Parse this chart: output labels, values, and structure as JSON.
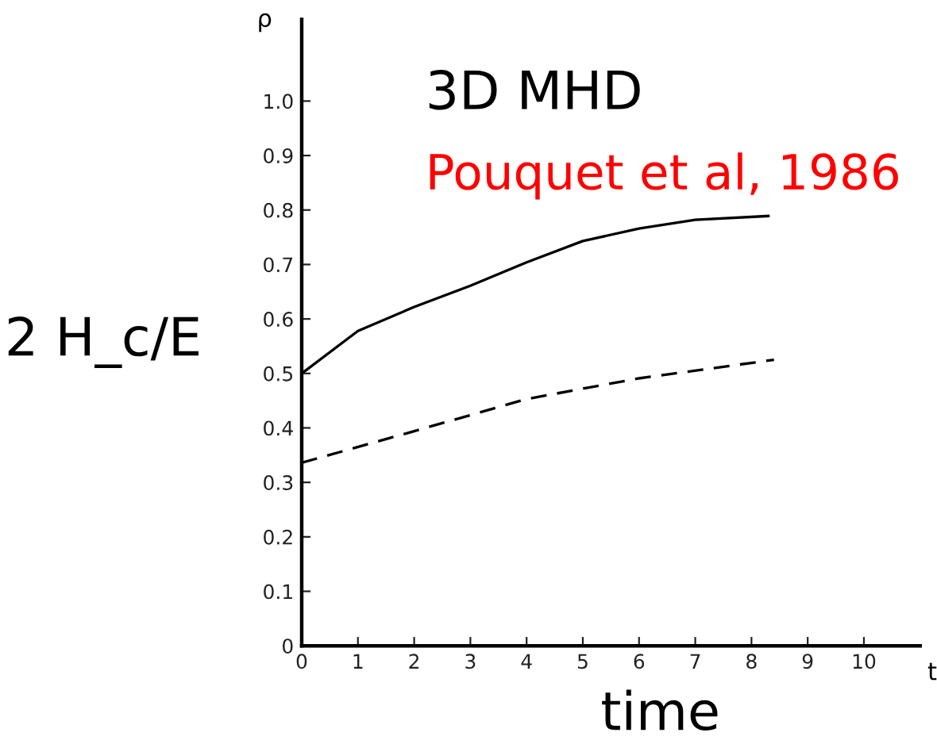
{
  "chart_data": {
    "type": "line",
    "title": "3D MHD",
    "xlabel": "time",
    "ylabel": "ρ",
    "annotations": [
      "Pouquet et al, 1986",
      "2 H_c/E",
      "t"
    ],
    "xlim": [
      0,
      11
    ],
    "ylim": [
      0,
      1.15
    ],
    "xticks": [
      0,
      1,
      2,
      3,
      4,
      5,
      6,
      7,
      8,
      9,
      10
    ],
    "yticks": [
      0,
      0.1,
      0.2,
      0.3,
      0.4,
      0.5,
      0.6,
      0.7,
      0.8,
      0.9,
      {
        "value": 1,
        "label": "1.0"
      }
    ],
    "grid": false,
    "legend": false,
    "marker": "none",
    "series": [
      {
        "color": "#000000",
        "line_style": "solid",
        "x": [
          0,
          1,
          2,
          3,
          4,
          5,
          6,
          7,
          8.3
        ],
        "values": [
          0.5,
          0.578,
          0.622,
          0.661,
          0.704,
          0.743,
          0.766,
          0.782,
          0.789
        ]
      },
      {
        "color": "#000000",
        "line_style": "dashed",
        "x": [
          0,
          2,
          4,
          6,
          8.4
        ],
        "values": [
          0.336,
          0.394,
          0.453,
          0.491,
          0.525
        ]
      }
    ]
  }
}
